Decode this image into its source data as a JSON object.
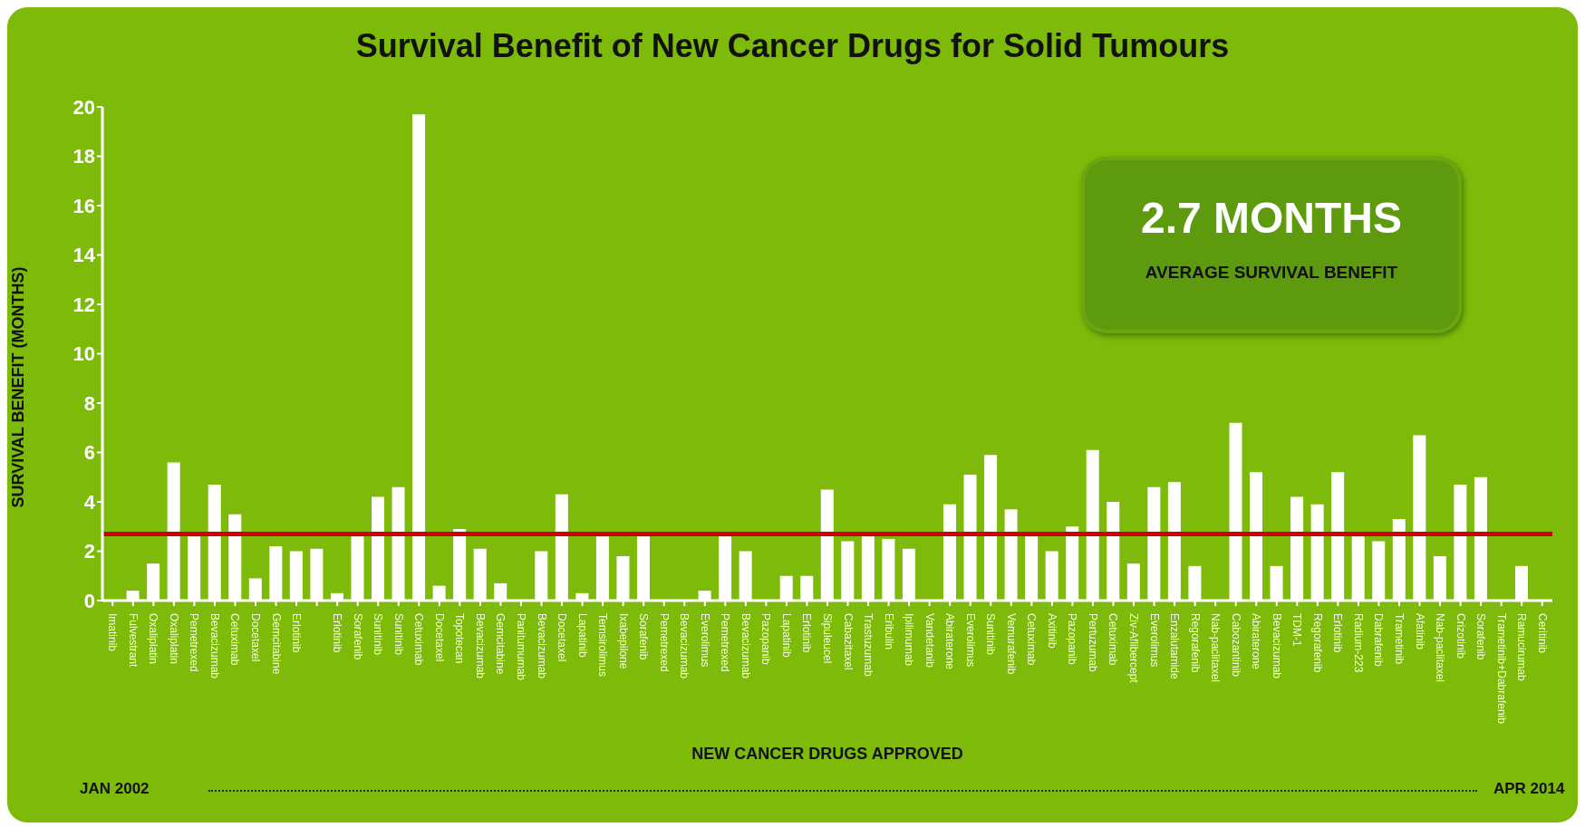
{
  "chart_data": {
    "type": "bar",
    "title": "Survival Benefit of New Cancer Drugs for Solid Tumours",
    "xlabel": "NEW CANCER DRUGS APPROVED",
    "ylabel": "SURVIVAL BENEFIT (MONTHS)",
    "categories": [
      "Imatinib",
      "Fulvestrant",
      "Oxaliplatin",
      "Oxaliplatin",
      "Pemetrexed",
      "Bevacizumab",
      "Cetuximab",
      "Docetaxel",
      "Gemcitabine",
      "Erlotinib",
      null,
      "Erlotinib",
      "Sorafenib",
      "Sunitinib",
      "Sunitinib",
      "Cetuximab",
      "Docetaxel",
      "Topotecan",
      "Bevacizumab",
      "Gemcitabine",
      "Panitumumab",
      "Bevacizumab",
      "Docetaxel",
      "Lapatinib",
      "Temsirolimus",
      "Ixabepilone",
      "Sorafenib",
      "Pemetrexed",
      "Bevacizumab",
      "Everolimus",
      "Pemetrexed",
      "Bevacizumab",
      "Pazopanib",
      "Lapatinib",
      "Erlotinib",
      "Sipuleucel",
      "Cabazitaxel",
      "Trastuzumab",
      "Eribulin",
      "Ipilimumab",
      "Vandetanib",
      "Abiraterone",
      "Everolimus",
      "Sunitinib",
      "Vemurafenib",
      "Cetuximab",
      "Axitinib",
      "Pazopanib",
      "Pertuzumab",
      "Cetuximab",
      "Ziv-Aflibercept",
      "Everolimus",
      "Enzalutamide",
      "Regorafenib",
      "Nab-paclitaxel",
      "Cabozantinib",
      "Abiraterone",
      "Bevacizumab",
      "TDM-1",
      "Regorafenib",
      "Erlotinib",
      "Radium-223",
      "Dabrafenib",
      "Trametinib",
      "Afatinib",
      "Nab-paclitaxel",
      "Crizotinib",
      "Sorafenib",
      "Trametinib+Dabrafenib",
      "Ramucirumab",
      "Ceritinib"
    ],
    "values": [
      0,
      0.4,
      1.5,
      5.6,
      2.6,
      4.7,
      3.5,
      0.9,
      2.2,
      2.0,
      2.1,
      0.3,
      2.6,
      4.2,
      4.6,
      19.7,
      0.6,
      2.9,
      2.1,
      0.7,
      0,
      2.0,
      4.3,
      0.3,
      2.6,
      1.8,
      2.6,
      0,
      0,
      0.4,
      2.6,
      2.0,
      0,
      1.0,
      1.0,
      4.5,
      2.4,
      2.6,
      2.5,
      2.1,
      0,
      3.9,
      5.1,
      5.9,
      3.7,
      2.6,
      2.0,
      3.0,
      6.1,
      4.0,
      1.5,
      4.6,
      4.8,
      1.4,
      0,
      7.2,
      5.2,
      1.4,
      4.2,
      3.9,
      5.2,
      2.6,
      2.4,
      3.3,
      6.7,
      1.8,
      4.7,
      5.0,
      0,
      1.4,
      0
    ],
    "color": "#ffffff",
    "ylim": [
      0,
      20
    ],
    "yticks": [
      0,
      2,
      4,
      6,
      8,
      10,
      12,
      14,
      16,
      18,
      20
    ],
    "grid": false,
    "legend": false,
    "ref_lines": [
      {
        "axis": "y",
        "value": 2.7,
        "color": "#cc0000"
      }
    ],
    "annotations": [
      "2.7 MONTHS",
      "AVERAGE SURVIVAL BENEFIT",
      "JAN 2002",
      "APR 2014"
    ]
  }
}
